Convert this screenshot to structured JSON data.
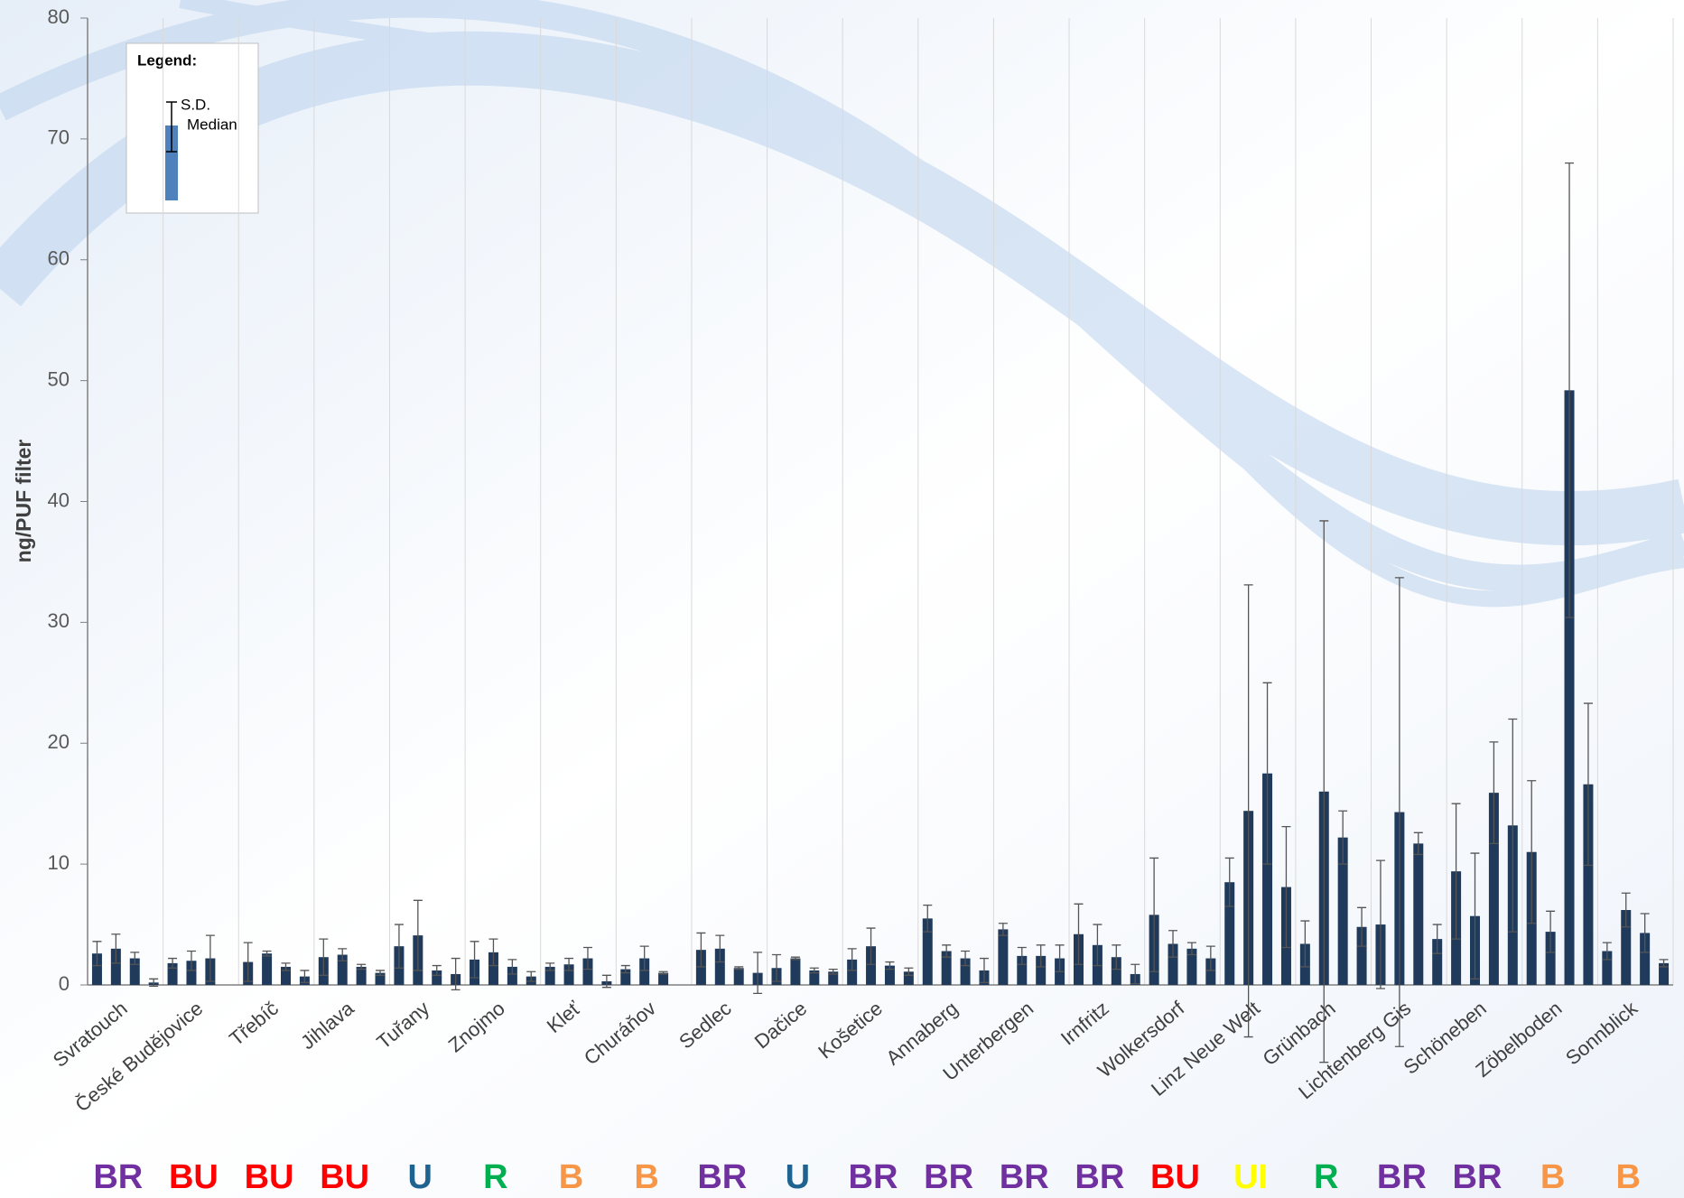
{
  "chart_data": {
    "type": "bar",
    "y_label": "ng/PUF filter",
    "ylim": [
      0,
      80
    ],
    "yticks": [
      0,
      10,
      20,
      30,
      40,
      50,
      60,
      70,
      80
    ],
    "grid": true,
    "color": "#1f3a5a",
    "legend": {
      "title": "Legend:",
      "sd": "S.D.",
      "median": "Median",
      "color": "#4f81bd"
    },
    "code_colors": {
      "BR": "#7030a0",
      "BU": "#ff0000",
      "U": "#1f6391",
      "R": "#00b050",
      "B": "#f79646",
      "UI": "#ffff00"
    },
    "groups": [
      {
        "name": "Svratouch",
        "code": "BR",
        "values": [
          2.6,
          3.0,
          2.2,
          0.2
        ],
        "errors": [
          1.0,
          1.2,
          0.5,
          0.3
        ]
      },
      {
        "name": "České Budějovice",
        "code": "BU",
        "values": [
          1.8,
          2.0,
          2.2,
          null
        ],
        "errors": [
          0.4,
          0.8,
          1.9,
          null
        ]
      },
      {
        "name": "Třebíč",
        "code": "BU",
        "values": [
          1.9,
          2.6,
          1.5,
          0.7
        ],
        "errors": [
          1.6,
          0.2,
          0.3,
          0.5
        ]
      },
      {
        "name": "Jihlava",
        "code": "BU",
        "values": [
          2.3,
          2.5,
          1.5,
          1.0
        ],
        "errors": [
          1.5,
          0.5,
          0.2,
          0.2
        ]
      },
      {
        "name": "Tuřany",
        "code": "U",
        "values": [
          3.2,
          4.1,
          1.2,
          0.9
        ],
        "errors": [
          1.8,
          2.9,
          0.4,
          1.3
        ]
      },
      {
        "name": "Znojmo",
        "code": "R",
        "values": [
          2.1,
          2.7,
          1.5,
          0.7
        ],
        "errors": [
          1.5,
          1.1,
          0.6,
          0.4
        ]
      },
      {
        "name": "Kleť",
        "code": "B",
        "values": [
          1.5,
          1.7,
          2.2,
          0.3
        ],
        "errors": [
          0.3,
          0.5,
          0.9,
          0.5
        ]
      },
      {
        "name": "Churáňov",
        "code": "B",
        "values": [
          1.3,
          2.2,
          1.0,
          null
        ],
        "errors": [
          0.3,
          1.0,
          0.1,
          null
        ]
      },
      {
        "name": "Sedlec",
        "code": "BR",
        "values": [
          2.9,
          3.0,
          1.4,
          1.0
        ],
        "errors": [
          1.4,
          1.1,
          0.1,
          1.7
        ]
      },
      {
        "name": "Dačice",
        "code": "U",
        "values": [
          1.4,
          2.2,
          1.2,
          1.1
        ],
        "errors": [
          1.1,
          0.1,
          0.2,
          0.2
        ]
      },
      {
        "name": "Košetice",
        "code": "BR",
        "values": [
          2.1,
          3.2,
          1.6,
          1.1
        ],
        "errors": [
          0.9,
          1.5,
          0.3,
          0.3
        ]
      },
      {
        "name": "Annaberg",
        "code": "BR",
        "values": [
          5.5,
          2.8,
          2.2,
          1.2
        ],
        "errors": [
          1.1,
          0.5,
          0.6,
          1.0
        ]
      },
      {
        "name": "Unterbergen",
        "code": "BR",
        "values": [
          4.6,
          2.4,
          2.4,
          2.2
        ],
        "errors": [
          0.5,
          0.7,
          0.9,
          1.1
        ]
      },
      {
        "name": "Irnfritz",
        "code": "BR",
        "values": [
          4.2,
          3.3,
          2.3,
          0.9
        ],
        "errors": [
          2.5,
          1.7,
          1.0,
          0.8
        ]
      },
      {
        "name": "Wolkersdorf",
        "code": "BU",
        "values": [
          5.8,
          3.4,
          3.0,
          2.2
        ],
        "errors": [
          4.7,
          1.1,
          0.5,
          1.0
        ]
      },
      {
        "name": "Linz Neue Welt",
        "code": "UI",
        "values": [
          8.5,
          14.4,
          17.5,
          8.1
        ],
        "errors": [
          2.0,
          18.7,
          7.5,
          5.0
        ]
      },
      {
        "name": "Grünbach",
        "code": "R",
        "values": [
          3.4,
          16.0,
          12.2,
          4.8
        ],
        "errors": [
          1.9,
          22.4,
          2.2,
          1.6
        ]
      },
      {
        "name": "Lichtenberg Gis",
        "code": "BR",
        "values": [
          5.0,
          14.3,
          11.7,
          3.8
        ],
        "errors": [
          5.3,
          19.4,
          0.9,
          1.2
        ]
      },
      {
        "name": "Schöneben",
        "code": "BR",
        "values": [
          9.4,
          5.7,
          15.9,
          13.2
        ],
        "errors": [
          5.6,
          5.2,
          4.2,
          8.8
        ]
      },
      {
        "name": "Zöbelboden",
        "code": "B",
        "values": [
          11.0,
          4.4,
          49.2,
          16.6
        ],
        "errors": [
          5.9,
          1.7,
          18.8,
          6.7
        ]
      },
      {
        "name": "Sonnblick",
        "code": "B",
        "values": [
          2.8,
          6.2,
          4.3,
          1.8
        ],
        "errors": [
          0.7,
          1.4,
          1.6,
          0.3
        ]
      }
    ]
  }
}
